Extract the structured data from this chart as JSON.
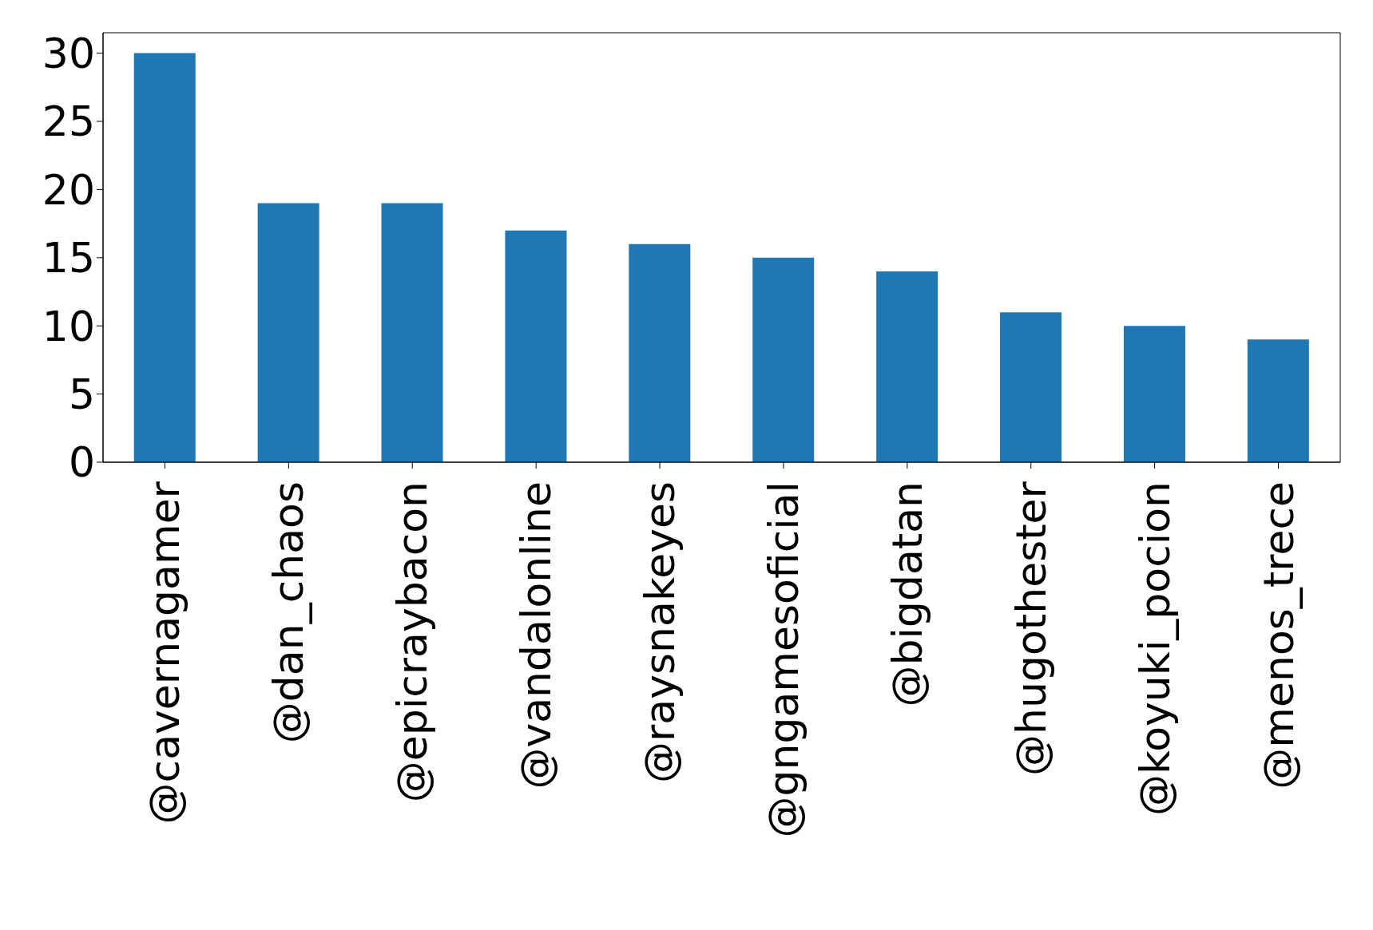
{
  "chart_data": {
    "type": "bar",
    "categories": [
      "@cavernagamer",
      "@dan_chaos",
      "@epicraybacon",
      "@vandalonline",
      "@raysnakeyes",
      "@gngamesoficial",
      "@bigdatan",
      "@hugothester",
      "@koyuki_pocion",
      "@menos_trece"
    ],
    "values": [
      30,
      19,
      19,
      17,
      16,
      15,
      14,
      11,
      10,
      9
    ],
    "color": "#1f77b4",
    "ylim": [
      0,
      31.5
    ],
    "yticks": [
      0,
      5,
      10,
      15,
      20,
      25,
      30
    ],
    "grid": false
  }
}
